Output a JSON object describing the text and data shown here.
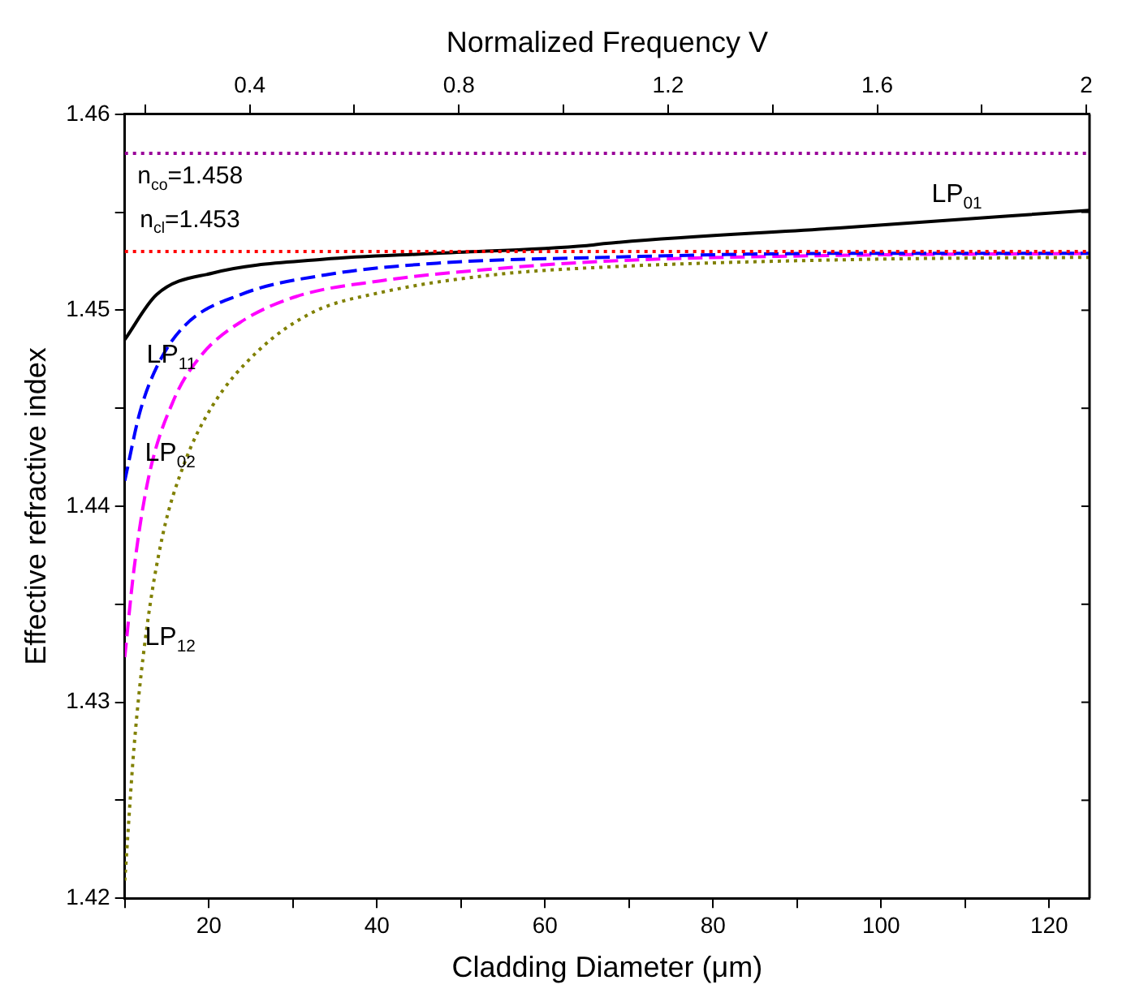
{
  "chart_data": {
    "type": "line",
    "xlabel": "Cladding Diameter (μm)",
    "ylabel": "Effective refractive index",
    "x2label": "Normalized Frequency V",
    "xlim": [
      10,
      124.8
    ],
    "ylim": [
      1.42,
      1.46
    ],
    "x2lim": [
      0.161,
      2.006
    ],
    "xticks": [
      {
        "value": 10,
        "label": null
      },
      20,
      {
        "value": 30,
        "label": null
      },
      40,
      {
        "value": 50,
        "label": null
      },
      60,
      {
        "value": 70,
        "label": null
      },
      80,
      {
        "value": 90,
        "label": null
      },
      100,
      {
        "value": 110,
        "label": null
      },
      120
    ],
    "yticks": [
      1.42,
      {
        "value": 1.425,
        "label": null
      },
      1.43,
      {
        "value": 1.435,
        "label": null
      },
      1.44,
      {
        "value": 1.445,
        "label": null
      },
      1.45,
      {
        "value": 1.455,
        "label": null
      },
      1.46
    ],
    "x2ticks": [
      {
        "value": 0.2,
        "label": null
      },
      0.4,
      {
        "value": 0.6,
        "label": null
      },
      0.8,
      {
        "value": 1.0,
        "label": null
      },
      1.2,
      {
        "value": 1.4,
        "label": null
      },
      1.6,
      {
        "value": 1.8,
        "label": null
      },
      2.0
    ],
    "grid": false,
    "legend": false,
    "marker": "none",
    "series": [
      {
        "name": "LP$_{01}$",
        "color": "#000000",
        "line_style": "solid",
        "x": [
          10,
          13.8,
          20.5,
          33.7,
          47,
          65,
          67,
          95,
          124.8
        ],
        "values": [
          1.4485,
          1.4508,
          1.4519,
          1.4526,
          1.4529,
          1.4533,
          1.4534,
          1.4542,
          1.4551
        ]
      },
      {
        "name": "LP$_{11}$",
        "color": "#0000ff",
        "line_style": "dashed",
        "x": [
          10,
          11.8,
          13.8,
          17.1,
          23.8,
          33.8,
          47.1,
          67.1,
          95,
          124.8
        ],
        "values": [
          1.4413,
          1.4448,
          1.4471,
          1.4492,
          1.4508,
          1.4518,
          1.4524,
          1.4527,
          1.4529,
          1.4529
        ]
      },
      {
        "name": "LP$_{02}$",
        "color": "#ff00ff",
        "line_style": "dashed",
        "x": [
          10,
          11.1,
          12.8,
          15.8,
          19.1,
          23.8,
          30.4,
          40.4,
          53.7,
          67.1,
          95,
          124.8
        ],
        "values": [
          1.4323,
          1.4368,
          1.4414,
          1.4454,
          1.4477,
          1.4494,
          1.4507,
          1.4515,
          1.4521,
          1.4525,
          1.4528,
          1.4529
        ]
      },
      {
        "name": "LP$_{12}$",
        "color": "#808000",
        "line_style": "dotted",
        "x": [
          10,
          11.1,
          12.5,
          14.5,
          17.1,
          20.4,
          25.8,
          32.4,
          40.4,
          53.7,
          67.1,
          98.5,
          124.8
        ],
        "values": [
          1.4209,
          1.4277,
          1.4334,
          1.4385,
          1.4422,
          1.4451,
          1.4479,
          1.4499,
          1.4509,
          1.4518,
          1.4522,
          1.4526,
          1.4527
        ]
      }
    ],
    "ref_lines": [
      {
        "axis": "y",
        "value": 1.458,
        "label": "n$_{co}$=1.458",
        "color": "#990099",
        "line_style": "dotted"
      },
      {
        "axis": "y",
        "value": 1.453,
        "label": "n$_{cl}$=1.453",
        "color": "#ff0000",
        "line_style": "dotted"
      }
    ]
  }
}
